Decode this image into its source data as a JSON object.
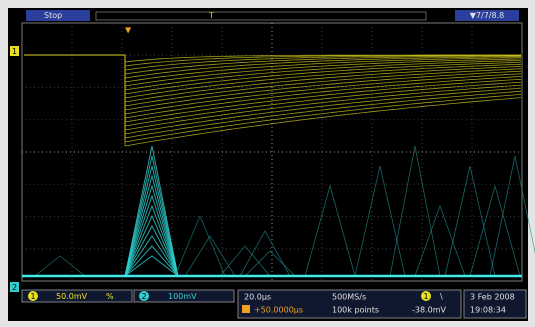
{
  "top_bar": {
    "state": "Stop",
    "trigger_marker": "T",
    "record_info": "▼7/7/8.8"
  },
  "channel_markers": [
    "1",
    "2"
  ],
  "bottom_bar": {
    "ch1": {
      "number": "1",
      "scale": "50.0mV",
      "bandwidth": "%"
    },
    "ch2": {
      "number": "2",
      "scale": "100mV"
    },
    "timebase": {
      "scale": "20.0µs",
      "position": "+50.0000µs"
    },
    "acquisition": {
      "rate": "500MS/s",
      "record": "100k points"
    },
    "trigger": {
      "source": "1",
      "slope": "\\",
      "level": "-38.0mV"
    },
    "clock": {
      "date": "3 Feb 2008",
      "time": "19:08:34"
    }
  }
}
